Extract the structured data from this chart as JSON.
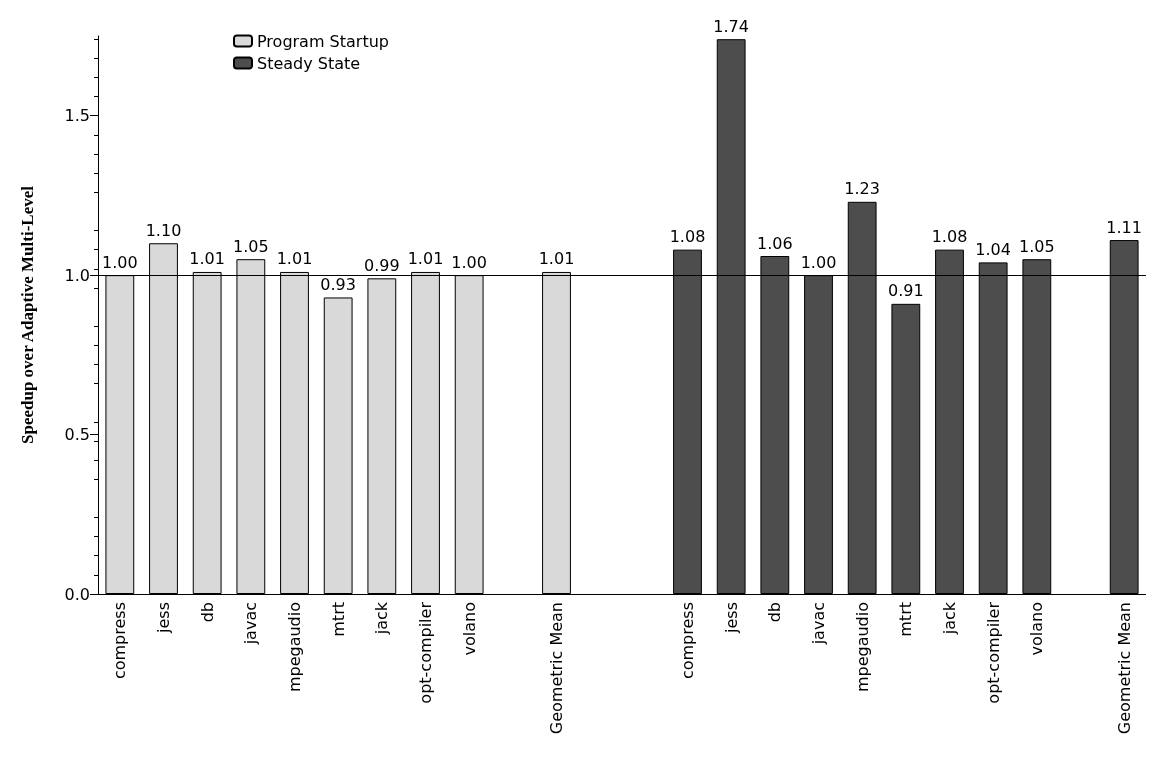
{
  "chart_data": {
    "type": "bar",
    "ylabel": "Speedup over Adaptive Multi-Level",
    "categories": [
      "compress",
      "jess",
      "db",
      "javac",
      "mpegaudio",
      "mtrt",
      "jack",
      "opt-compiler",
      "volano",
      null,
      "Geometric Mean",
      null,
      null,
      "compress",
      "jess",
      "db",
      "javac",
      "mpegaudio",
      "mtrt",
      "jack",
      "opt-compiler",
      "volano",
      null,
      "Geometric Mean"
    ],
    "series": [
      {
        "name": "Program Startup",
        "color": "#d9d9d9",
        "values": [
          1.0,
          1.1,
          1.01,
          1.05,
          1.01,
          0.93,
          0.99,
          1.01,
          1.0,
          null,
          1.01,
          null,
          null,
          null,
          null,
          null,
          null,
          null,
          null,
          null,
          null,
          null,
          null,
          null
        ],
        "value_labels": [
          "1.00",
          "1.10",
          "1.01",
          "1.05",
          "1.01",
          "0.93",
          "0.99",
          "1.01",
          "1.00",
          null,
          "1.01",
          null,
          null,
          null,
          null,
          null,
          null,
          null,
          null,
          null,
          null,
          null,
          null,
          null
        ]
      },
      {
        "name": "Steady State",
        "color": "#4d4d4d",
        "values": [
          null,
          null,
          null,
          null,
          null,
          null,
          null,
          null,
          null,
          null,
          null,
          null,
          null,
          1.08,
          1.74,
          1.06,
          1.0,
          1.23,
          0.91,
          1.08,
          1.04,
          1.05,
          null,
          1.11
        ],
        "value_labels": [
          null,
          null,
          null,
          null,
          null,
          null,
          null,
          null,
          null,
          null,
          null,
          null,
          null,
          "1.08",
          "1.74",
          "1.06",
          "1.00",
          "1.23",
          "0.91",
          "1.08",
          "1.04",
          "1.05",
          null,
          "1.11"
        ]
      }
    ],
    "ylim": [
      0,
      1.75
    ],
    "yticks": [
      {
        "value": 0,
        "label": "0.0"
      },
      {
        "value": 0.5,
        "label": "0.5"
      },
      {
        "value": 1,
        "label": "1.0"
      },
      {
        "value": 1.5,
        "label": "1.5"
      }
    ],
    "ref_lines": [
      {
        "axis": "y",
        "value": 1,
        "color": "#000000"
      }
    ],
    "grid": false,
    "legend": "top left"
  }
}
